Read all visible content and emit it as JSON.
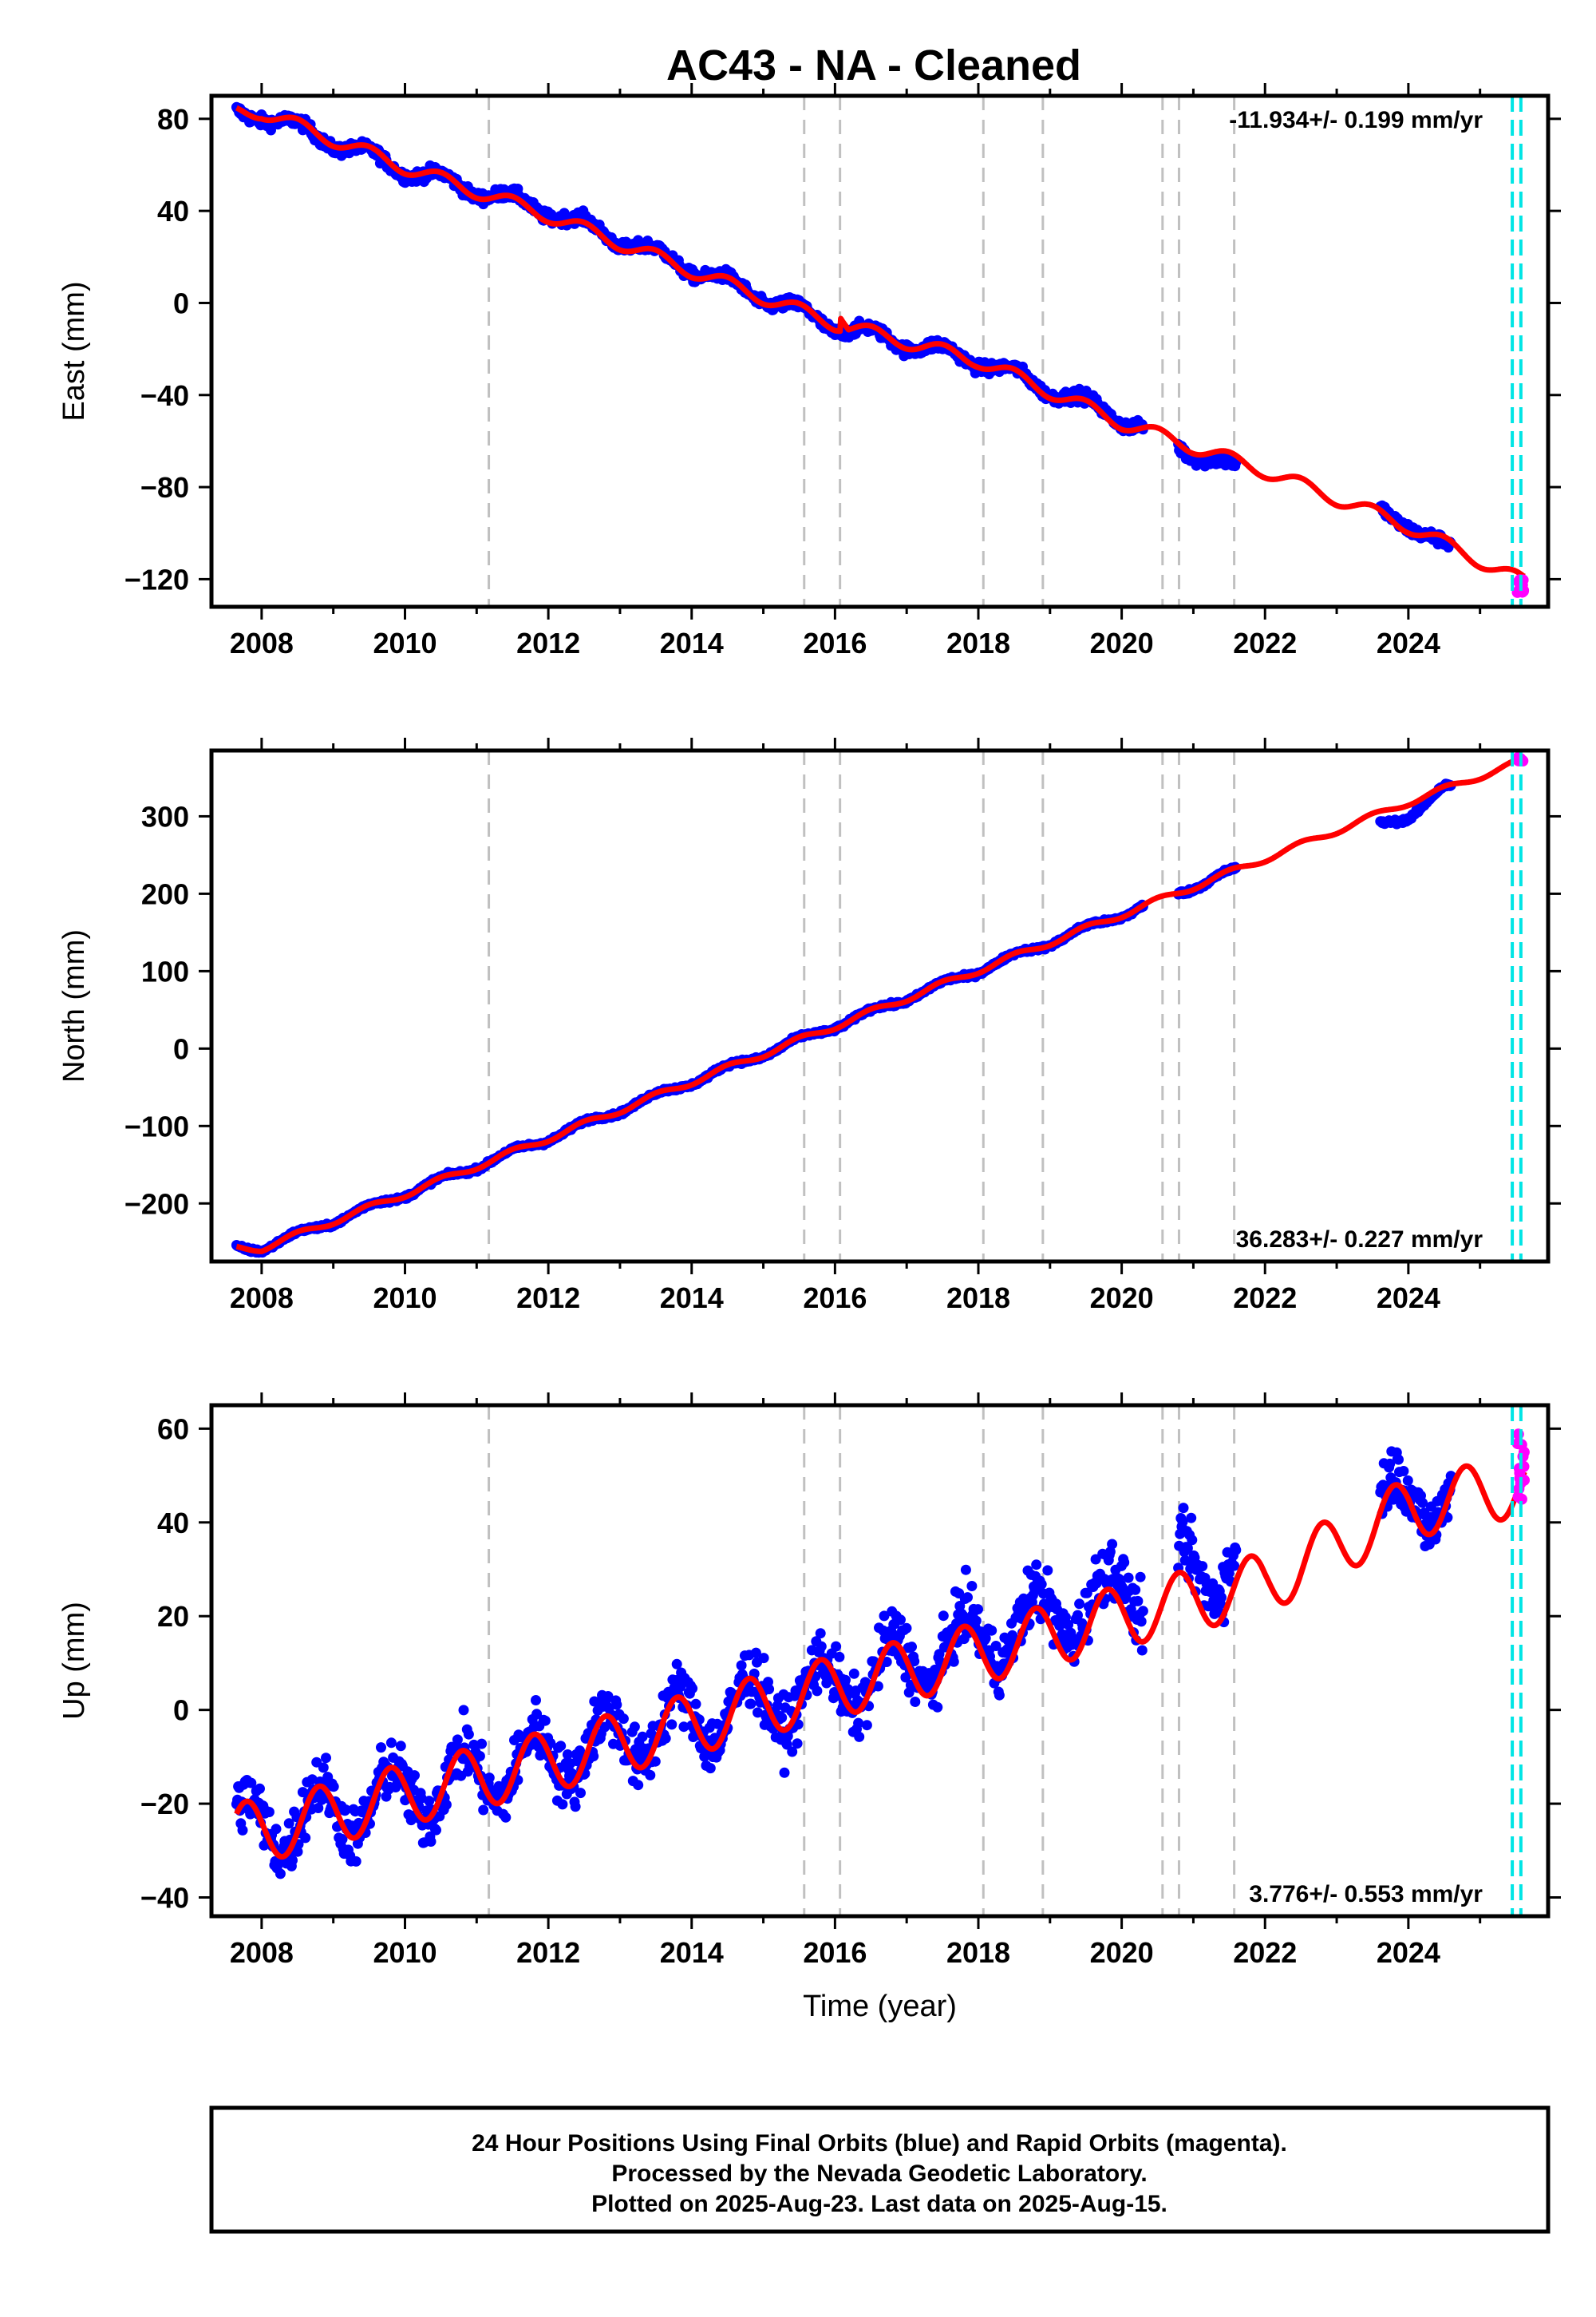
{
  "title": "AC43  - NA - Cleaned",
  "colors": {
    "final_orbits": "#0000ff",
    "rapid_orbits": "#ff00ff",
    "model": "#ff0000",
    "event_lines": "#c0c0c0",
    "data_end_lines": "#00e5e5"
  },
  "chart_data": [
    {
      "type": "scatter",
      "panel": "east",
      "title": "",
      "xlabel": "",
      "ylabel": "East (mm)",
      "xlim": [
        2007.3,
        2025.95
      ],
      "ylim": [
        -132,
        90
      ],
      "x_ticks": [
        2008,
        2010,
        2012,
        2014,
        2016,
        2018,
        2020,
        2022,
        2024
      ],
      "y_ticks": [
        80,
        40,
        0,
        -40,
        -80,
        -120
      ],
      "rate_text": "-11.934+/- 0.199 mm/yr",
      "rate_position": "top-right",
      "event_lines": [
        2011.17,
        2015.57,
        2016.07,
        2018.07,
        2018.9,
        2020.57,
        2020.8,
        2021.57
      ],
      "data_end_lines": [
        2025.45,
        2025.57
      ],
      "data_gaps": [
        [
          2020.3,
          2020.78
        ],
        [
          2021.6,
          2023.6
        ],
        [
          2024.6,
          2025.5
        ]
      ],
      "series": [
        {
          "name": "Final Orbits",
          "color": "blue",
          "x_range": [
            2007.65,
            2025.5
          ],
          "values_at": {
            "2008": 82,
            "2010": 58,
            "2012": 40,
            "2014": 15,
            "2016": -10,
            "2018": -25,
            "2020": -50,
            "2021.5": -72,
            "2024": -95,
            "2024.5": -107
          }
        },
        {
          "name": "Rapid Orbits",
          "color": "magenta",
          "x_range": [
            2025.52,
            2025.62
          ],
          "y_range": [
            -126,
            -120
          ]
        }
      ],
      "model": {
        "trend_mm_per_yr": -11.934,
        "annual_amplitude_mm": 3,
        "steps": [
          [
            2016.07,
            6
          ]
        ],
        "values_at": {
          "2008": 83,
          "2010": 59,
          "2012": 38,
          "2014": 14,
          "2016": -9,
          "2018": -25,
          "2020": -52,
          "2022": -73,
          "2024": -97,
          "2025.6": -121
        }
      }
    },
    {
      "type": "scatter",
      "panel": "north",
      "title": "",
      "xlabel": "",
      "ylabel": "North (mm)",
      "xlim": [
        2007.3,
        2025.95
      ],
      "ylim": [
        -275,
        385
      ],
      "x_ticks": [
        2008,
        2010,
        2012,
        2014,
        2016,
        2018,
        2020,
        2022,
        2024
      ],
      "y_ticks": [
        300,
        200,
        100,
        0,
        -100,
        -200
      ],
      "rate_text": "36.283+/- 0.227 mm/yr",
      "rate_position": "bottom-right",
      "event_lines": [
        2011.17,
        2015.57,
        2016.07,
        2018.07,
        2018.9,
        2020.57,
        2020.8,
        2021.57
      ],
      "data_end_lines": [
        2025.45,
        2025.57
      ],
      "data_gaps": [
        [
          2020.3,
          2020.78
        ],
        [
          2021.6,
          2023.6
        ],
        [
          2024.6,
          2025.5
        ]
      ],
      "series": [
        {
          "name": "Final Orbits",
          "color": "blue",
          "x_range": [
            2007.65,
            2025.5
          ],
          "values_at": {
            "2008": -258,
            "2010": -188,
            "2012": -116,
            "2014": -43,
            "2016": 29,
            "2018": 101,
            "2020": 173,
            "2021.5": 227,
            "2024": 300,
            "2024.5": 336
          }
        },
        {
          "name": "Rapid Orbits",
          "color": "magenta",
          "x_range": [
            2025.52,
            2025.62
          ],
          "y_range": [
            368,
            376
          ]
        }
      ],
      "model": {
        "trend_mm_per_yr": 36.283,
        "annual_amplitude_mm": 4,
        "values_at": {
          "2008": -258,
          "2010": -188,
          "2012": -116,
          "2014": -43,
          "2016": 29,
          "2018": 101,
          "2020": 173,
          "2022": 245,
          "2024": 318,
          "2025.6": 372
        }
      }
    },
    {
      "type": "scatter",
      "panel": "up",
      "title": "",
      "xlabel": "Time (year)",
      "ylabel": "Up (mm)",
      "xlim": [
        2007.3,
        2025.95
      ],
      "ylim": [
        -44,
        65
      ],
      "x_ticks": [
        2008,
        2010,
        2012,
        2014,
        2016,
        2018,
        2020,
        2022,
        2024
      ],
      "y_ticks": [
        60,
        40,
        20,
        0,
        -20,
        -40
      ],
      "rate_text": "3.776+/- 0.553 mm/yr",
      "rate_position": "bottom-right",
      "event_lines": [
        2011.17,
        2015.57,
        2016.07,
        2018.07,
        2018.9,
        2020.57,
        2020.8,
        2021.57
      ],
      "data_end_lines": [
        2025.45,
        2025.57
      ],
      "data_gaps": [
        [
          2020.3,
          2020.78
        ],
        [
          2021.6,
          2023.6
        ],
        [
          2024.6,
          2025.5
        ]
      ],
      "series": [
        {
          "name": "Final Orbits",
          "color": "blue",
          "x_range": [
            2007.65,
            2025.5
          ],
          "scatter_mm": 4.5,
          "values_at": {
            "2008": -25,
            "2010": -18,
            "2012": -10,
            "2014": -2,
            "2016": 5,
            "2018": 15,
            "2020": 25,
            "2021.5": 32,
            "2024": 45,
            "2024.5": 46
          }
        },
        {
          "name": "Rapid Orbits",
          "color": "magenta",
          "x_range": [
            2025.52,
            2025.62
          ],
          "y_range": [
            44,
            62
          ]
        }
      ],
      "model": {
        "trend_mm_per_yr": 3.776,
        "annual_amplitude_mm": 6.5,
        "annual_peak_phase_yr": 0.8,
        "values_at": {
          "2008": -26,
          "2010": -18,
          "2012": -11,
          "2014": -3,
          "2016": 5,
          "2018": 12,
          "2020": 20,
          "2022": 27,
          "2024": 43,
          "2025.6": 48
        }
      }
    }
  ],
  "footer": {
    "line1": "24 Hour Positions Using Final Orbits (blue) and Rapid Orbits (magenta).",
    "line2": "Processed by the Nevada Geodetic Laboratory.",
    "line3": "Plotted on 2025-Aug-23. Last data on 2025-Aug-15."
  }
}
